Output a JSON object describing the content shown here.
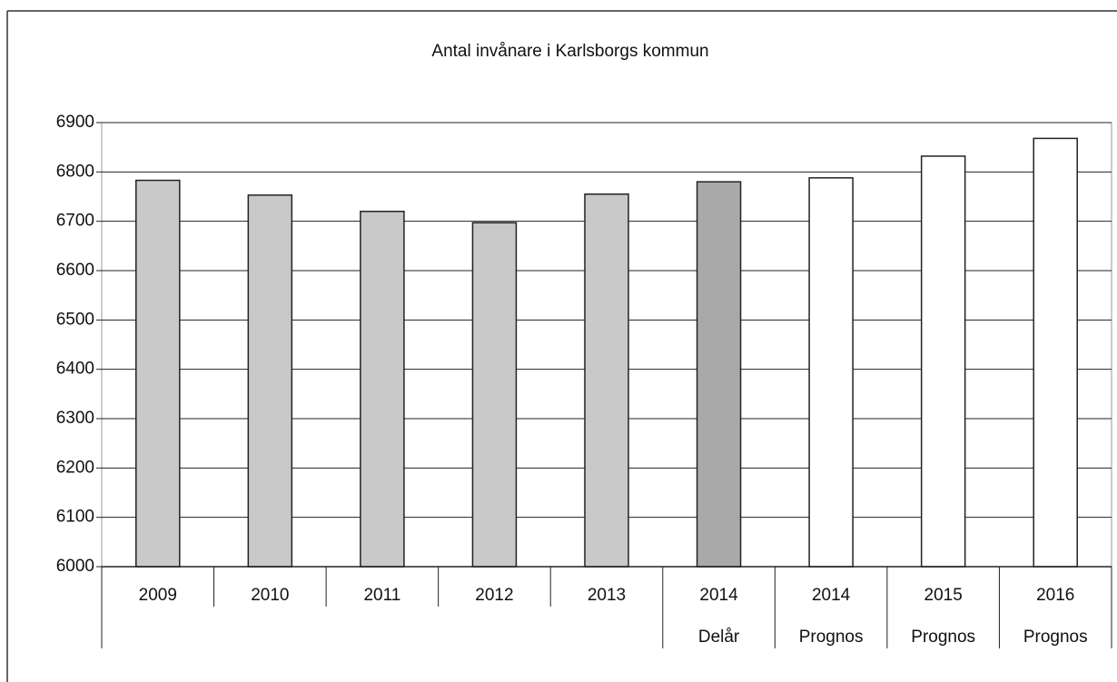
{
  "chart_data": {
    "type": "bar",
    "title": "Antal invånare i Karlsborgs kommun",
    "categories": [
      "2009",
      "2010",
      "2011",
      "2012",
      "2013",
      "2014",
      "2014",
      "2015",
      "2016"
    ],
    "categories2": [
      null,
      null,
      null,
      null,
      null,
      "Delår",
      "Prognos",
      "Prognos",
      "Prognos"
    ],
    "values": [
      6783,
      6753,
      6720,
      6697,
      6755,
      6780,
      6788,
      6832,
      6868
    ],
    "colors": [
      "#c9c9c9",
      "#c9c9c9",
      "#c9c9c9",
      "#c9c9c9",
      "#c9c9c9",
      "#a9a9a9",
      "#ffffff",
      "#ffffff",
      "#ffffff"
    ],
    "ylim": [
      6000,
      6900
    ],
    "yticks": [
      6000,
      6100,
      6200,
      6300,
      6400,
      6500,
      6600,
      6700,
      6800,
      6900
    ],
    "grid": true
  }
}
